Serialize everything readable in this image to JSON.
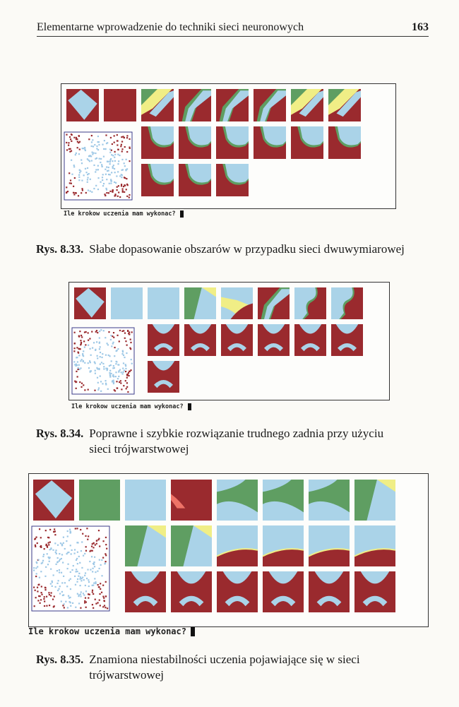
{
  "header": {
    "title": "Elementarne wprowadzenie do techniki sieci neuronowych",
    "page_number": "163"
  },
  "figures": [
    {
      "id": "fig833",
      "prompt": "Ile krokow uczenia mam wykonac?",
      "caption_num": "Rys. 8.33.",
      "caption_text": "Słabe dopasowanie obszarów w przypadku sieci dwuwymiarowej"
    },
    {
      "id": "fig834",
      "prompt": "Ile krokow uczenia mam wykonac?",
      "caption_num": "Rys. 8.34.",
      "caption_text": "Poprawne i szybkie rozwiązanie trudnego zadnia przy użyciu sieci trójwarstwowej"
    },
    {
      "id": "fig835",
      "prompt": "Ile krokow uczenia mam wykonac?",
      "caption_num": "Rys. 8.35.",
      "caption_text": "Znamiona niestabilności uczenia pojawiające się w sieci trójwarstwowej"
    }
  ],
  "colors": {
    "red": "#9a2a2e",
    "blue": "#aad3e8",
    "green": "#5f9e62",
    "yellow": "#f0ee86",
    "pink": "#ee7367",
    "frame": "#3a3a8a"
  }
}
